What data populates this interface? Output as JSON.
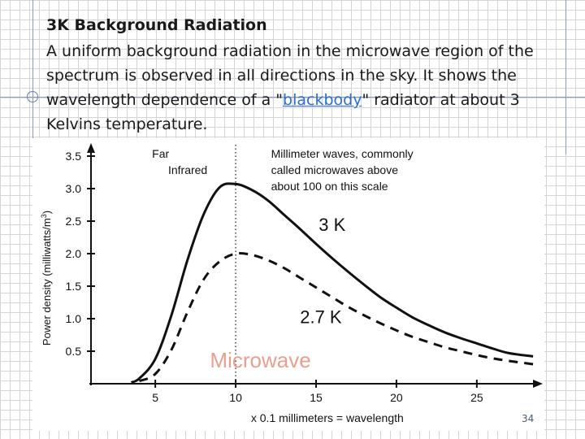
{
  "slide": {
    "title": "3K Background Radiation",
    "body_text": "A uniform background radiation in the microwave region of the spectrum is observed in all directions in the sky. It shows the wavelength dependence of a \"",
    "body_link": "blackbody",
    "body_text_after": "\" radiator at about 3 Kelvins temperature.",
    "page_number": "34"
  },
  "chart_data": {
    "type": "line",
    "xlabel": "x 0.1 millimeters = wavelength",
    "ylabel": "Power density (milliwatts/m",
    "ylabel_sup": "3",
    "ylabel_close": ")",
    "x_ticks": [
      5,
      10,
      15,
      20,
      25
    ],
    "y_ticks": [
      0.5,
      1.0,
      1.5,
      2.0,
      2.5,
      3.0,
      3.5
    ],
    "y_tick_labels": [
      "0.5",
      "1.0",
      "1.5",
      "2.0",
      "2.5",
      "3.0",
      "3.5"
    ],
    "xlim": [
      1,
      29
    ],
    "ylim": [
      0,
      3.6
    ],
    "grid": false,
    "divider_x": 10,
    "region_labels": {
      "far_infrared_line1": "Far",
      "far_infrared_line2": "Infrared",
      "microwave_note_line1": "Millimeter waves, commonly",
      "microwave_note_line2": "called microwaves above",
      "microwave_note_line3": "about 100 on this scale",
      "microwave_big": "Microwave"
    },
    "series": [
      {
        "name": "3 K",
        "style": "solid",
        "x": [
          3.5,
          4,
          5,
          6,
          7,
          8,
          9,
          10,
          11,
          12,
          13,
          14,
          15,
          16,
          17,
          18,
          19,
          20,
          21,
          22,
          23,
          24,
          25,
          26,
          27,
          28.5
        ],
        "y": [
          0.02,
          0.08,
          0.38,
          1.05,
          1.9,
          2.6,
          3.02,
          3.07,
          2.98,
          2.82,
          2.6,
          2.38,
          2.15,
          1.93,
          1.72,
          1.52,
          1.33,
          1.17,
          1.02,
          0.9,
          0.79,
          0.7,
          0.62,
          0.54,
          0.47,
          0.42
        ]
      },
      {
        "name": "2.7 K",
        "style": "dashed",
        "x": [
          4,
          5,
          6,
          7,
          8,
          9,
          10,
          11,
          12,
          13,
          14,
          15,
          16,
          17,
          18,
          19,
          20,
          21,
          22,
          23,
          24,
          25,
          26,
          27,
          28.5
        ],
        "y": [
          0.04,
          0.15,
          0.52,
          1.1,
          1.6,
          1.88,
          2.0,
          1.98,
          1.9,
          1.78,
          1.63,
          1.48,
          1.33,
          1.18,
          1.05,
          0.93,
          0.82,
          0.72,
          0.64,
          0.56,
          0.5,
          0.44,
          0.39,
          0.35,
          0.3
        ]
      }
    ],
    "colors": {
      "line": "#111111",
      "microwave_label": "#e8a090"
    }
  }
}
